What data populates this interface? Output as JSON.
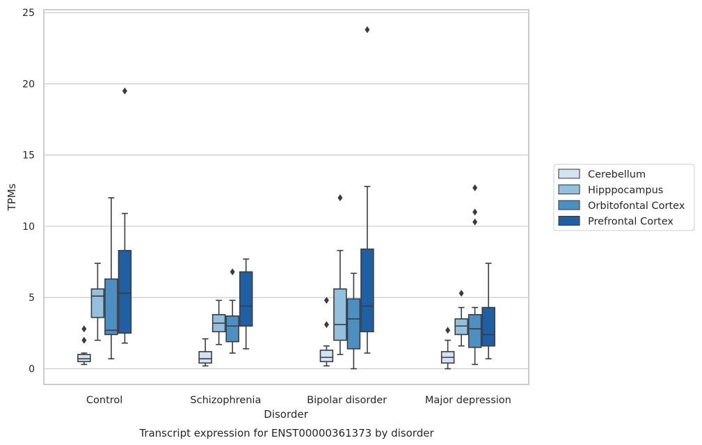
{
  "chart_data": {
    "type": "boxplot",
    "caption": "Transcript expression for ENST00000361373 by disorder",
    "xlabel": "Disorder",
    "ylabel": "TPMs",
    "ylim": [
      -1.1,
      25.2
    ],
    "yticks": [
      0,
      5,
      10,
      15,
      20,
      25
    ],
    "ytick_labels": [
      "0",
      "5",
      "10",
      "15",
      "20",
      "25"
    ],
    "grid": "horizontal",
    "legend_position": "right",
    "categories": [
      "Control",
      "Schizophrenia",
      "Bipolar disorder",
      "Major depression"
    ],
    "colors": [
      "#d3e3f2",
      "#93c0dc",
      "#4c8fc3",
      "#1f5fa3"
    ],
    "series": [
      {
        "name": "Cerebellum",
        "boxes": [
          {
            "q1": 0.5,
            "median": 0.7,
            "q3": 1.0,
            "whisker_low": 0.3,
            "whisker_high": 1.1,
            "outliers": [
              2.0,
              2.8
            ]
          },
          {
            "q1": 0.4,
            "median": 0.7,
            "q3": 1.2,
            "whisker_low": 0.2,
            "whisker_high": 2.1,
            "outliers": []
          },
          {
            "q1": 0.5,
            "median": 0.8,
            "q3": 1.3,
            "whisker_low": 0.2,
            "whisker_high": 1.6,
            "outliers": [
              3.1,
              4.8
            ]
          },
          {
            "q1": 0.4,
            "median": 0.8,
            "q3": 1.2,
            "whisker_low": 0.0,
            "whisker_high": 2.0,
            "outliers": [
              2.7
            ]
          }
        ]
      },
      {
        "name": "Hipppocampus",
        "boxes": [
          {
            "q1": 3.6,
            "median": 5.1,
            "q3": 5.6,
            "whisker_low": 2.0,
            "whisker_high": 7.4,
            "outliers": []
          },
          {
            "q1": 2.6,
            "median": 3.2,
            "q3": 3.8,
            "whisker_low": 1.7,
            "whisker_high": 4.8,
            "outliers": []
          },
          {
            "q1": 2.0,
            "median": 3.1,
            "q3": 5.6,
            "whisker_low": 1.0,
            "whisker_high": 8.3,
            "outliers": [
              12.0
            ]
          },
          {
            "q1": 2.4,
            "median": 3.0,
            "q3": 3.5,
            "whisker_low": 1.6,
            "whisker_high": 4.3,
            "outliers": [
              5.3
            ]
          }
        ]
      },
      {
        "name": "Orbitofontal Cortex",
        "boxes": [
          {
            "q1": 2.4,
            "median": 2.7,
            "q3": 6.3,
            "whisker_low": 0.7,
            "whisker_high": 12.0,
            "outliers": []
          },
          {
            "q1": 1.9,
            "median": 3.0,
            "q3": 3.7,
            "whisker_low": 1.1,
            "whisker_high": 4.8,
            "outliers": [
              6.8
            ]
          },
          {
            "q1": 1.4,
            "median": 3.5,
            "q3": 4.9,
            "whisker_low": 0.0,
            "whisker_high": 6.7,
            "outliers": []
          },
          {
            "q1": 1.5,
            "median": 2.8,
            "q3": 3.8,
            "whisker_low": 0.3,
            "whisker_high": 4.3,
            "outliers": [
              10.3,
              11.0,
              12.7
            ]
          }
        ]
      },
      {
        "name": "Prefrontal Cortex",
        "boxes": [
          {
            "q1": 2.5,
            "median": 5.3,
            "q3": 8.3,
            "whisker_low": 1.8,
            "whisker_high": 10.9,
            "outliers": [
              19.5
            ]
          },
          {
            "q1": 3.0,
            "median": 4.4,
            "q3": 6.8,
            "whisker_low": 1.4,
            "whisker_high": 7.7,
            "outliers": []
          },
          {
            "q1": 2.6,
            "median": 4.4,
            "q3": 8.4,
            "whisker_low": 1.1,
            "whisker_high": 12.8,
            "outliers": [
              23.8
            ]
          },
          {
            "q1": 1.6,
            "median": 2.4,
            "q3": 4.3,
            "whisker_low": 0.7,
            "whisker_high": 7.4,
            "outliers": []
          }
        ]
      }
    ]
  }
}
